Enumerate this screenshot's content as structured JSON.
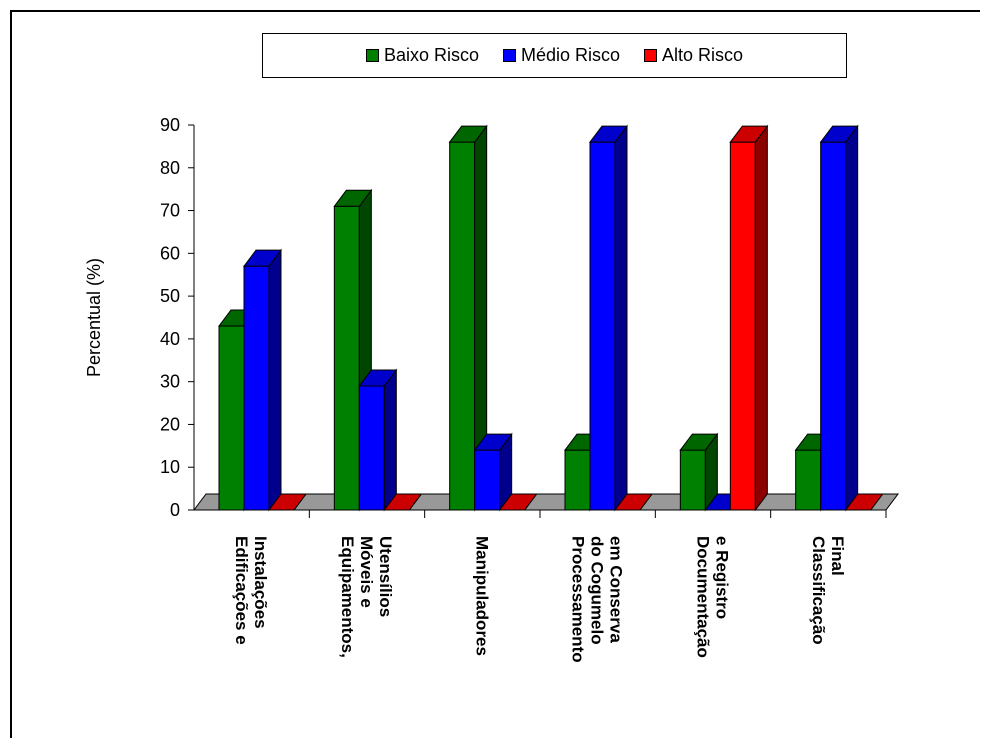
{
  "chart_data": {
    "type": "bar",
    "title": "",
    "xlabel": "",
    "ylabel": "Percentual (%)",
    "ylim": [
      0,
      90
    ],
    "yticks": [
      "0",
      "10",
      "20",
      "30",
      "40",
      "50",
      "60",
      "70",
      "80",
      "90"
    ],
    "legend_position": "top",
    "categories": [
      [
        "Edificações e",
        "Instalações"
      ],
      [
        "Equipamentos,",
        "Móveis e",
        "Utensílios"
      ],
      [
        "Manipuladores"
      ],
      [
        "Processamento",
        "do Cogumelo",
        "em Conserva"
      ],
      [
        "Documentação",
        "e Registro"
      ],
      [
        "Classificação",
        "Final"
      ]
    ],
    "series": [
      {
        "name": "Baixo Risco",
        "color": "#008000",
        "values": [
          43,
          71,
          86,
          14,
          14,
          14
        ]
      },
      {
        "name": "Médio Risco",
        "color": "#0000FF",
        "values": [
          57,
          29,
          14,
          86,
          0,
          86
        ]
      },
      {
        "name": "Alto Risco",
        "color": "#FF0000",
        "values": [
          0,
          0,
          0,
          0,
          86,
          0
        ]
      }
    ]
  }
}
